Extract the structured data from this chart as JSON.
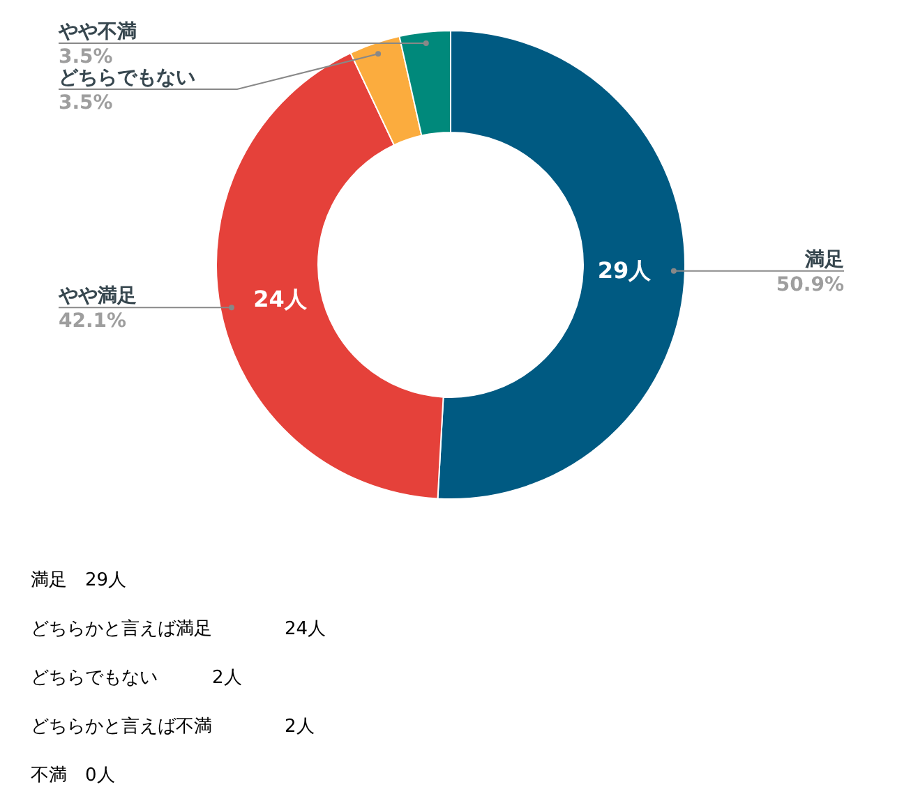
{
  "chart_data": {
    "type": "donut",
    "categories": [
      "満足",
      "やや満足",
      "どちらでもない",
      "やや不満"
    ],
    "values": [
      29,
      24,
      2,
      2
    ],
    "colors": [
      "#005a82",
      "#e5413a",
      "#fbac3e",
      "#00897b"
    ],
    "value_labels": [
      "29人",
      "24人",
      null,
      null
    ],
    "annotations": [
      {
        "text": "50.9%",
        "x": "満足"
      },
      {
        "text": "42.1%",
        "x": "やや満足"
      },
      {
        "text": "3.5%",
        "x": "どちらでもない"
      },
      {
        "text": "3.5%",
        "x": "やや不満"
      },
      "満足　29人",
      "どちらかと言えば満足　　　　24人",
      "どちらでもない　　　2人",
      "どちらかと言えば不満　　　　2人",
      "不満　0人"
    ]
  }
}
